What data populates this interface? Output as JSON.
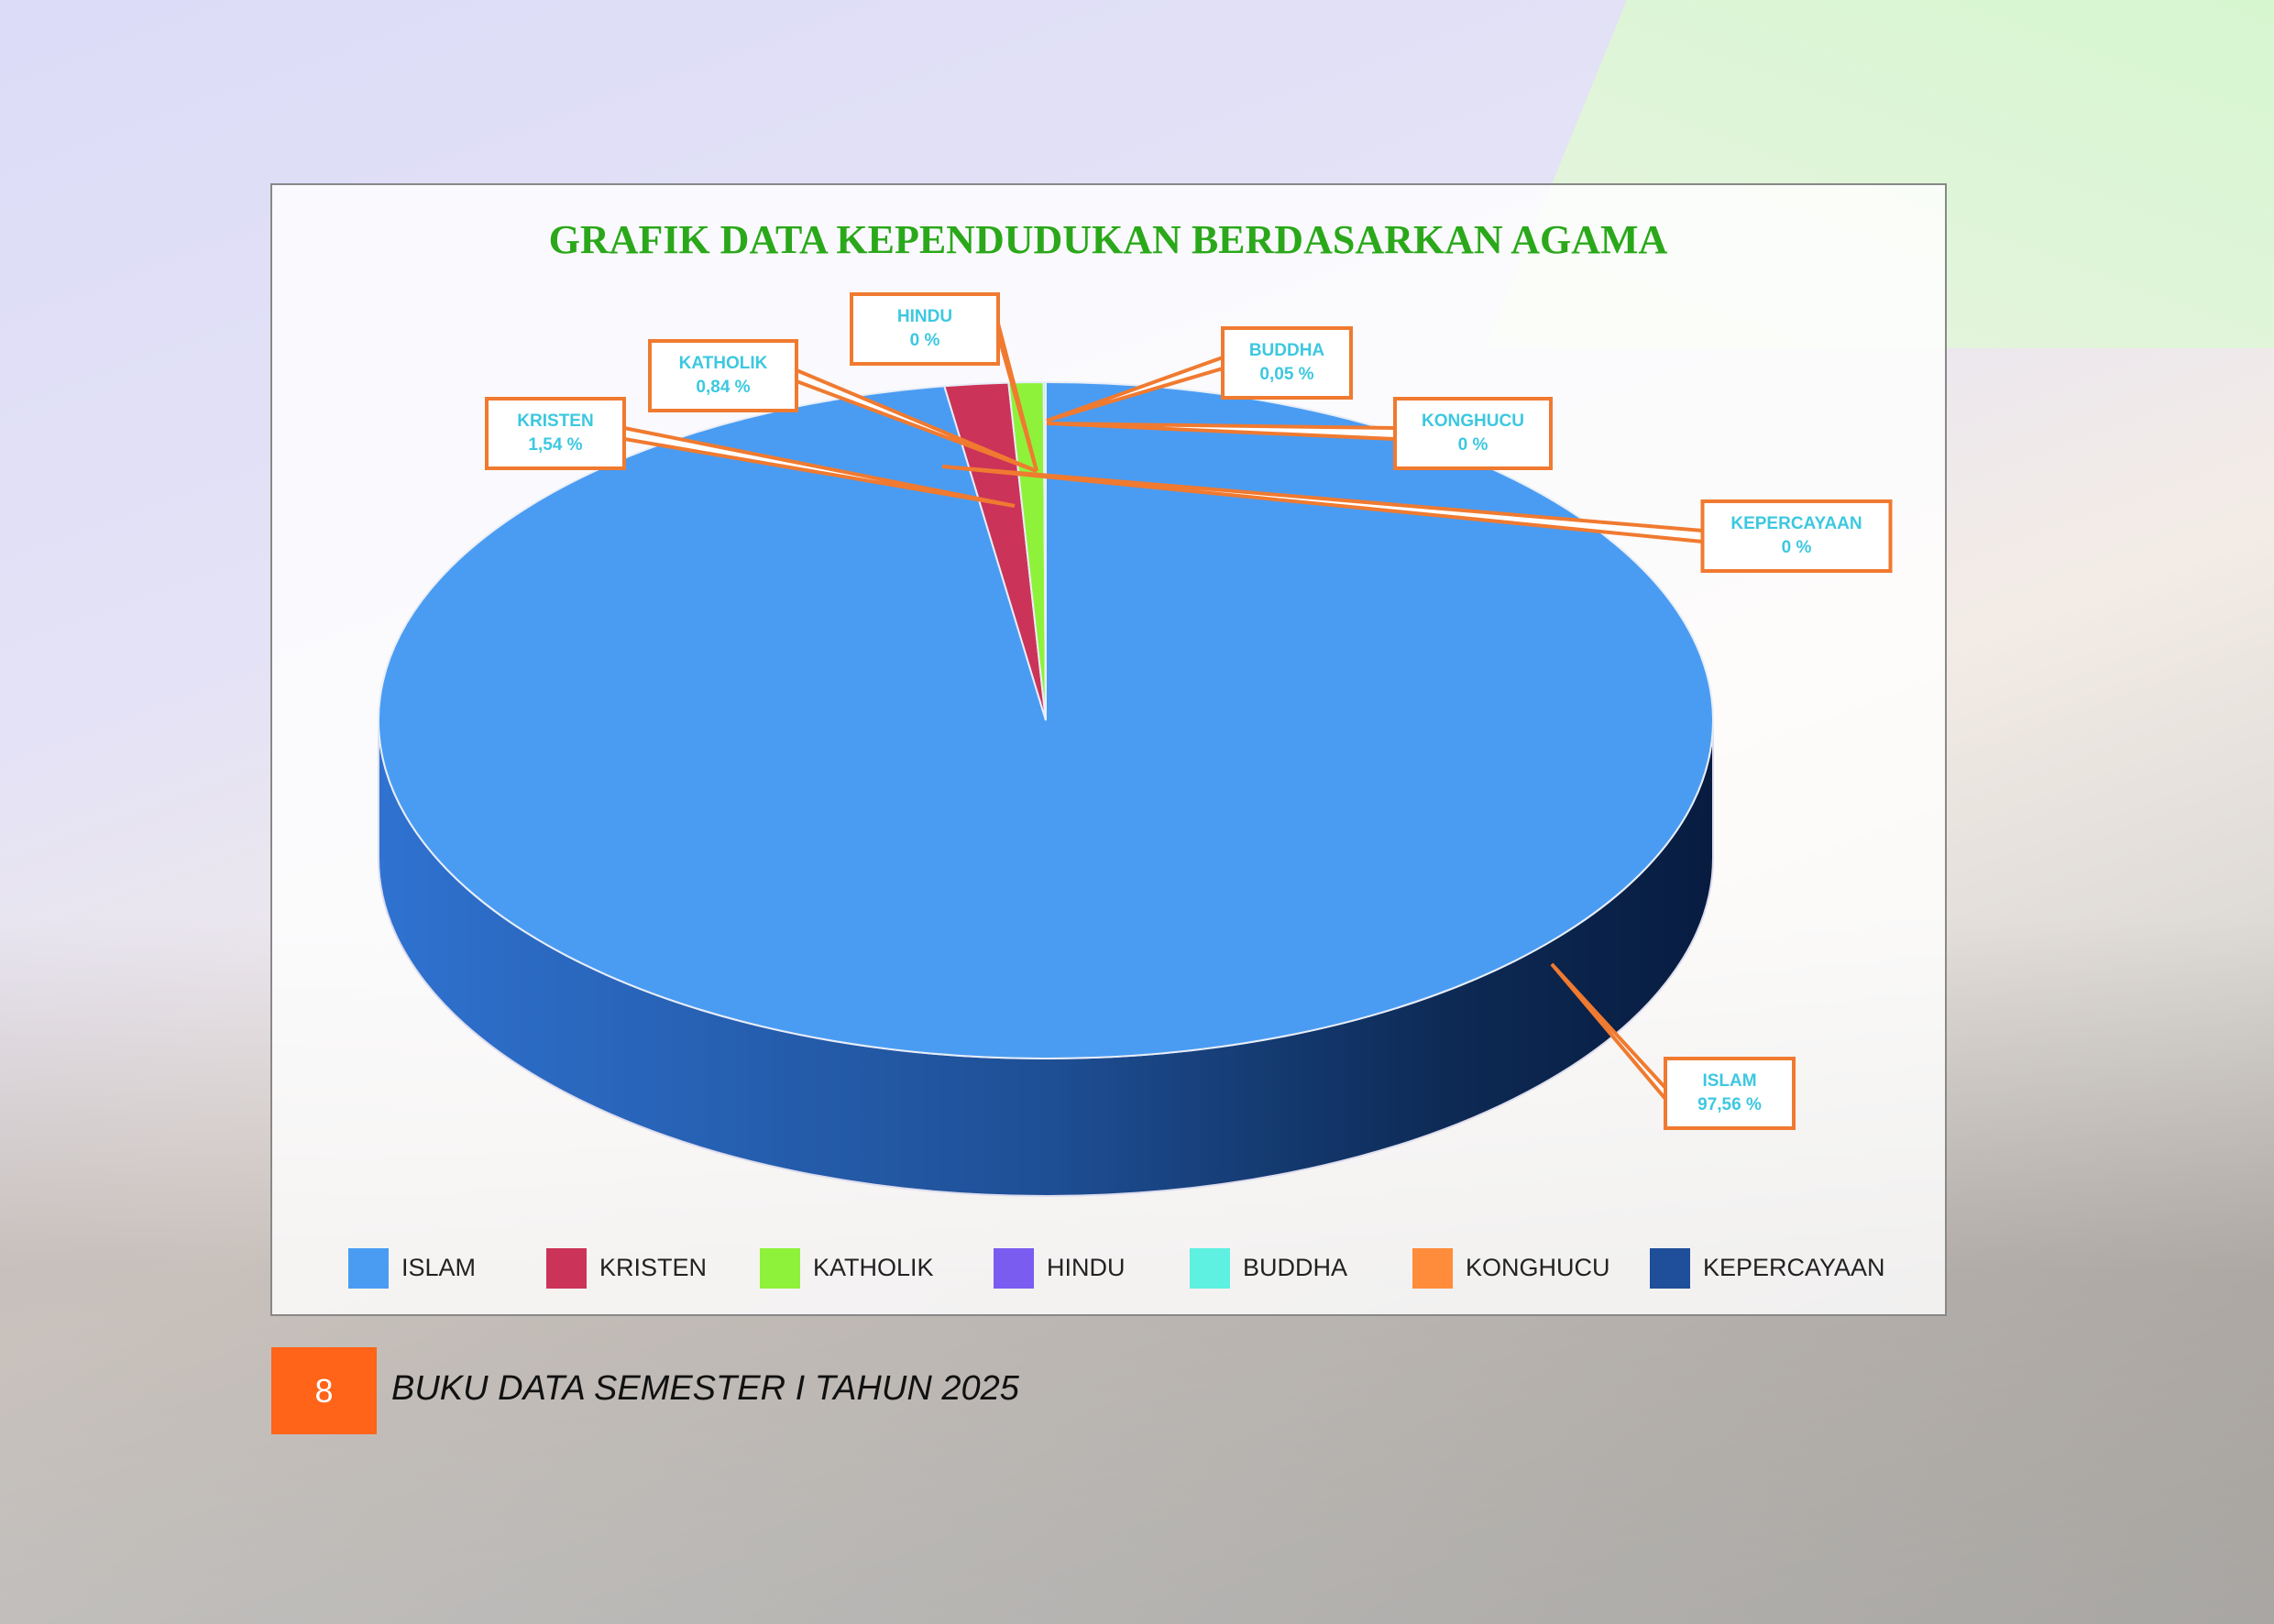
{
  "chart_data": {
    "type": "pie",
    "title": "GRAFIK DATA KEPENDUDUKAN BERDASARKAN AGAMA",
    "categories": [
      "ISLAM",
      "KRISTEN",
      "KATHOLIK",
      "HINDU",
      "BUDDHA",
      "KONGHUCU",
      "KEPERCAYAAN"
    ],
    "values": [
      97.56,
      1.54,
      0.84,
      0,
      0.05,
      0,
      0
    ],
    "value_labels": [
      "97,56 %",
      "1,54  %",
      "0,84 %",
      "0 %",
      "0,05 %",
      "0 %",
      "0 %"
    ],
    "colors": [
      "#4a9cf2",
      "#cc3358",
      "#8ef23a",
      "#7a5cf0",
      "#5ef0e0",
      "#ff8c3a",
      "#1f4e9a"
    ],
    "legend": "bottom"
  },
  "page": {
    "number": "8",
    "footer": "BUKU DATA SEMESTER I TAHUN 2025"
  }
}
